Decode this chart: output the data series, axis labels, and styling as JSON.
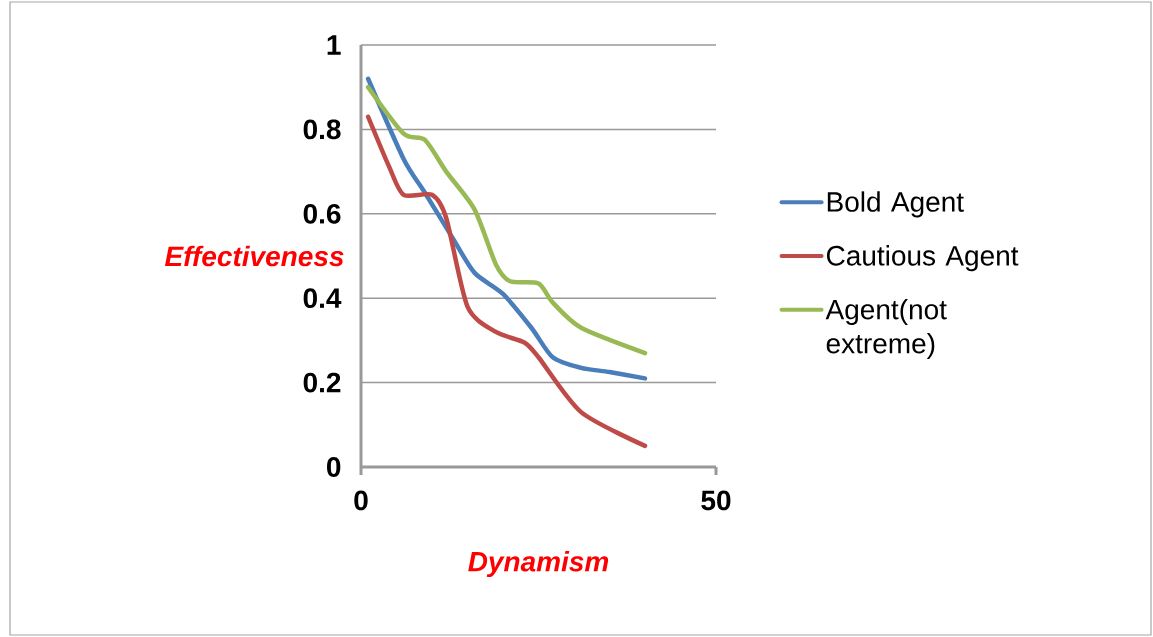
{
  "chart_data": {
    "type": "line",
    "xlabel": "Dynamism",
    "ylabel": "Effectiveness",
    "xlim": [
      0,
      50
    ],
    "xticks": [
      0,
      50
    ],
    "ylim": [
      0,
      1
    ],
    "yticks": [
      0,
      0.2,
      0.4,
      0.6,
      0.8,
      1
    ],
    "grid": "y",
    "legend": "right",
    "series": [
      {
        "name": "Bold Agent",
        "color": "#4a7ebb",
        "x": [
          1,
          6,
          9,
          13,
          16,
          20,
          24,
          27,
          31,
          35,
          40
        ],
        "values": [
          0.92,
          0.73,
          0.65,
          0.54,
          0.46,
          0.41,
          0.33,
          0.26,
          0.235,
          0.225,
          0.21
        ]
      },
      {
        "name": "Cautious Agent",
        "color": "#be4b48",
        "x": [
          1,
          4,
          6,
          10,
          12,
          15,
          19,
          23,
          25,
          31,
          40
        ],
        "values": [
          0.83,
          0.71,
          0.645,
          0.645,
          0.59,
          0.38,
          0.32,
          0.295,
          0.26,
          0.13,
          0.05
        ]
      },
      {
        "name": "Agent(not extreme)",
        "color": "#98b954",
        "x": [
          1,
          6,
          9,
          12,
          16,
          19,
          21,
          25,
          27,
          31,
          40
        ],
        "values": [
          0.9,
          0.79,
          0.775,
          0.7,
          0.61,
          0.48,
          0.44,
          0.435,
          0.39,
          0.33,
          0.27
        ]
      }
    ]
  }
}
